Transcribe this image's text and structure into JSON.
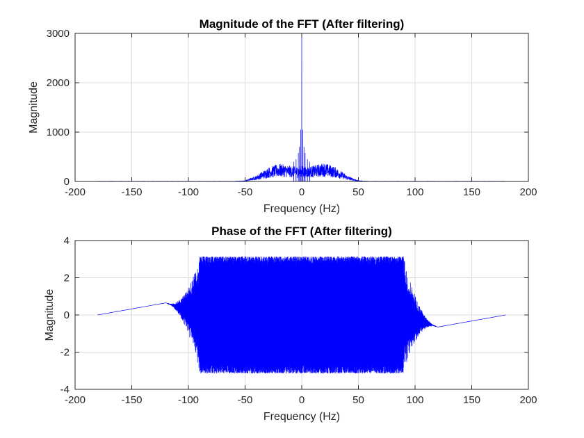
{
  "chart_data": [
    {
      "type": "line",
      "title": "Magnitude of the FFT (After filtering)",
      "xlabel": "Frequency (Hz)",
      "ylabel": "Magnitude",
      "xlim": [
        -200,
        200
      ],
      "ylim": [
        0,
        3000
      ],
      "xticks": [
        -200,
        -150,
        -100,
        -50,
        0,
        50,
        100,
        150,
        200
      ],
      "yticks": [
        0,
        1000,
        2000,
        3000
      ],
      "grid": true,
      "line_color": "#0000ff",
      "series_extent": [
        -180,
        180
      ],
      "envelope": {
        "x": [
          -180,
          -60,
          -50,
          -40,
          -30,
          -20,
          -10,
          -5,
          0,
          5,
          10,
          20,
          30,
          40,
          50,
          60,
          180
        ],
        "y": [
          5,
          5,
          15,
          120,
          280,
          360,
          320,
          300,
          320,
          300,
          320,
          380,
          290,
          120,
          15,
          5,
          5
        ]
      },
      "peaks": [
        {
          "x": 0,
          "y": 3000
        },
        {
          "x": -1,
          "y": 1050
        },
        {
          "x": 1,
          "y": 1050
        },
        {
          "x": -2,
          "y": 700
        },
        {
          "x": 2,
          "y": 700
        },
        {
          "x": -3,
          "y": 580
        },
        {
          "x": 3,
          "y": 580
        },
        {
          "x": -5,
          "y": 450
        },
        {
          "x": 5,
          "y": 450
        },
        {
          "x": -7,
          "y": 400
        },
        {
          "x": 7,
          "y": 400
        }
      ]
    },
    {
      "type": "line",
      "title": "Phase of the FFT (After filtering)",
      "xlabel": "Frequency (Hz)",
      "ylabel": "Magnitude",
      "xlim": [
        -200,
        200
      ],
      "ylim": [
        -4,
        4
      ],
      "xticks": [
        -200,
        -150,
        -100,
        -50,
        0,
        50,
        100,
        150,
        200
      ],
      "yticks": [
        -4,
        -2,
        0,
        2,
        4
      ],
      "grid": true,
      "line_color": "#0000ff",
      "series_extent": [
        -180,
        180
      ],
      "phase_wrap_band": [
        -90,
        90
      ],
      "phase_range": [
        -3.14,
        3.14
      ],
      "phase_end_values": {
        "x": [
          -180,
          -120,
          120,
          180
        ],
        "y": [
          0,
          0.65,
          -0.65,
          0
        ]
      }
    }
  ]
}
